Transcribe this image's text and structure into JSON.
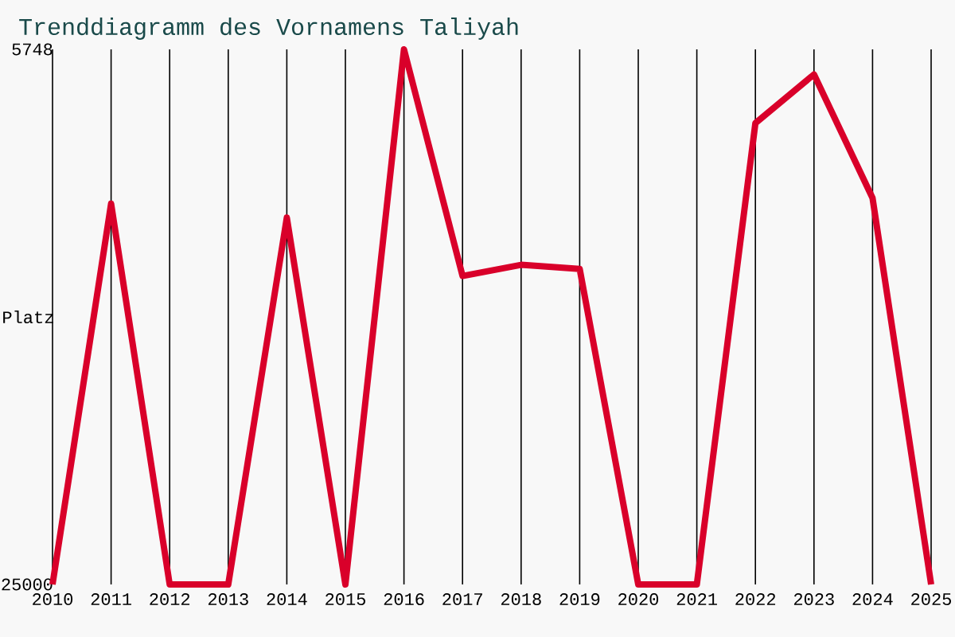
{
  "chart_data": {
    "type": "line",
    "title": "Trenddiagramm des Vornamens Taliyah",
    "ylabel": "Platz",
    "x": [
      2010,
      2011,
      2012,
      2013,
      2014,
      2015,
      2016,
      2017,
      2018,
      2019,
      2020,
      2021,
      2022,
      2023,
      2024,
      2025
    ],
    "series": [
      {
        "color": "#d9002a",
        "values": [
          25000,
          11300,
          25000,
          25000,
          11800,
          25000,
          5748,
          13900,
          13500,
          13650,
          25000,
          25000,
          8400,
          6650,
          11100,
          25000
        ]
      }
    ],
    "xlim": [
      2010,
      2025
    ],
    "xticks": [
      2010,
      2011,
      2012,
      2013,
      2014,
      2015,
      2016,
      2017,
      2018,
      2019,
      2020,
      2021,
      2022,
      2023,
      2024,
      2025
    ],
    "ylim": [
      25000,
      5748
    ],
    "yticks": [
      5748,
      25000
    ],
    "grid": "x",
    "marker": "none",
    "line_style": "solid"
  }
}
